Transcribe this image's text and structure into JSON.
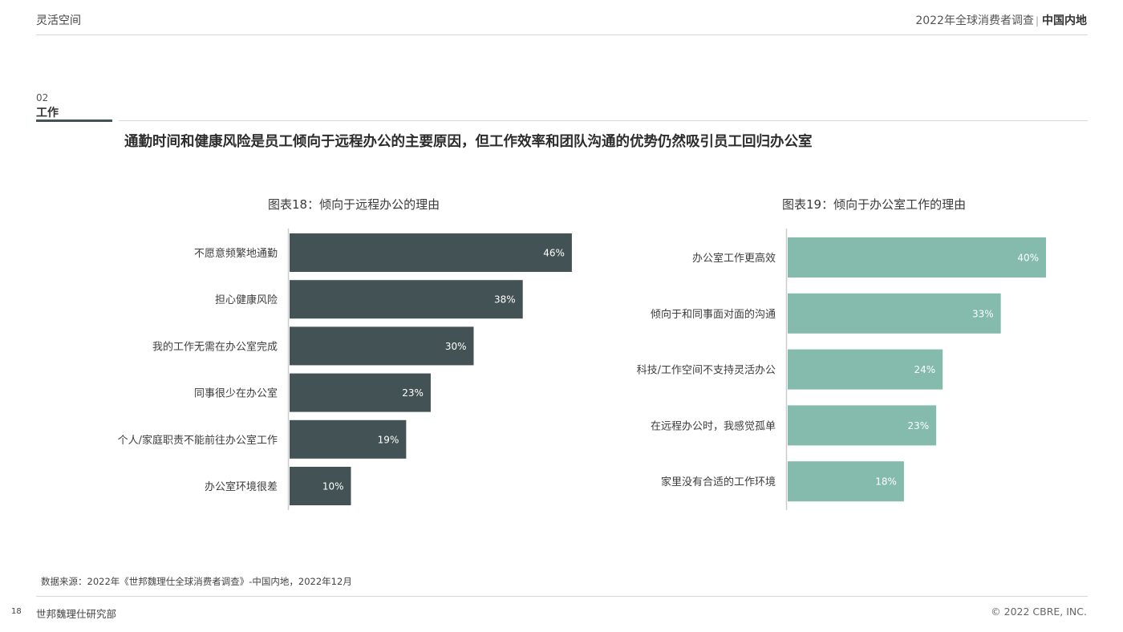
{
  "header": {
    "left": "灵活空间",
    "right_main": "2022年全球消费者调查",
    "right_sep": "|",
    "right_bold": "中国内地"
  },
  "section": {
    "number": "02",
    "title": "工作"
  },
  "headline": "通勤时间和健康风险是员工倾向于远程办公的主要原因，但工作效率和团队沟通的优势仍然吸引员工回归办公室",
  "chart_data": [
    {
      "type": "bar",
      "orientation": "horizontal",
      "title": "图表18：倾向于远程办公的理由",
      "categories": [
        "不愿意频繁地通勤",
        "担心健康风险",
        "我的工作无需在办公室完成",
        "同事很少在办公室",
        "个人/家庭职责不能前往办公室工作",
        "办公室环境很差"
      ],
      "values": [
        46,
        38,
        30,
        23,
        19,
        10
      ],
      "labels": [
        "46%",
        "38%",
        "30%",
        "23%",
        "19%",
        "10%"
      ],
      "color": "#435254",
      "xlim": [
        0,
        100
      ]
    },
    {
      "type": "bar",
      "orientation": "horizontal",
      "title": "图表19：倾向于办公室工作的理由",
      "categories": [
        "办公室工作更高效",
        "倾向于和同事面对面的沟通",
        "科技/工作空间不支持灵活办公",
        "在远程办公时，我感觉孤单",
        "家里没有合适的工作环境"
      ],
      "values": [
        40,
        33,
        24,
        23,
        18
      ],
      "labels": [
        "40%",
        "33%",
        "24%",
        "23%",
        "18%"
      ],
      "color": "#84bbac",
      "xlim": [
        0,
        100
      ]
    }
  ],
  "source": "数据来源：2022年《世邦魏理仕全球消费者调查》-中国内地，2022年12月",
  "footer": {
    "page_number": "18",
    "left": "世邦魏理仕研究部",
    "right": "© 2022 CBRE, INC."
  }
}
